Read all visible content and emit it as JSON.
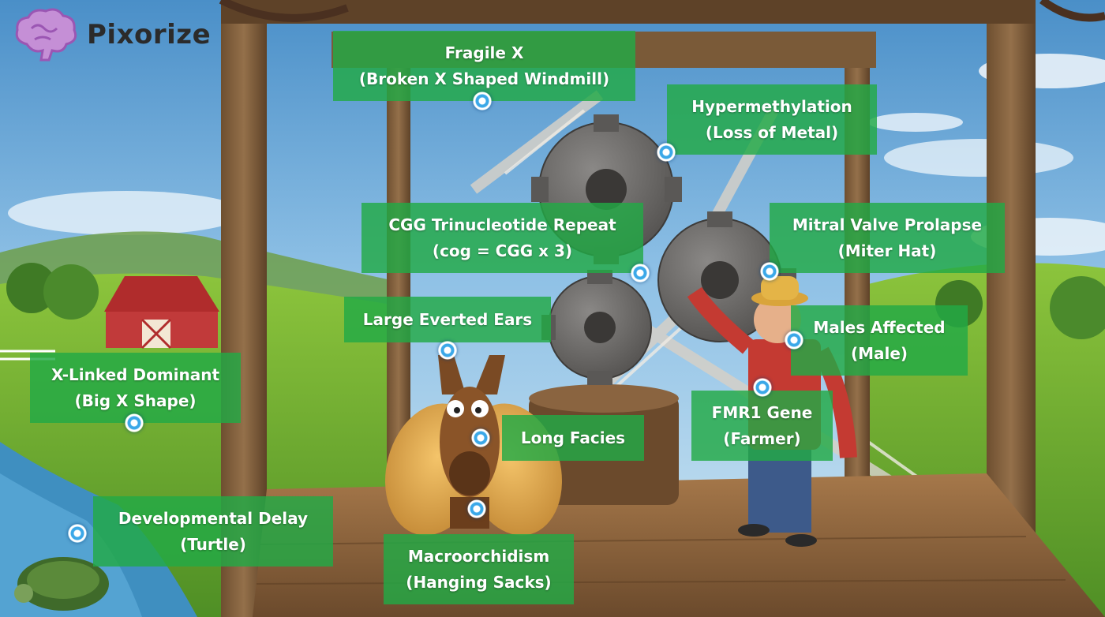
{
  "brand": {
    "name": "Pixorize",
    "icon": "brain-icon",
    "icon_color": "#b36bc7"
  },
  "colors": {
    "label_bg": "#22aa46",
    "dot": "#3ba8e8"
  },
  "labels": [
    {
      "id": "fragile-x",
      "line1": "Fragile X",
      "line2": "(Broken X Shaped Windmill)"
    },
    {
      "id": "hypermethylation",
      "line1": "Hypermethylation",
      "line2": "(Loss of Metal)"
    },
    {
      "id": "cgg-repeat",
      "line1": "CGG Trinucleotide Repeat",
      "line2": "(cog = CGG x 3)"
    },
    {
      "id": "mitral-valve-prolapse",
      "line1": "Mitral Valve Prolapse",
      "line2": "(Miter Hat)"
    },
    {
      "id": "large-everted-ears",
      "line1": "Large Everted Ears",
      "line2": ""
    },
    {
      "id": "males-affected",
      "line1": "Males Affected",
      "line2": "(Male)"
    },
    {
      "id": "x-linked-dominant",
      "line1": "X-Linked Dominant",
      "line2": "(Big X Shape)"
    },
    {
      "id": "long-facies",
      "line1": "Long Facies",
      "line2": ""
    },
    {
      "id": "fmr1-gene",
      "line1": "FMR1 Gene",
      "line2": "(Farmer)"
    },
    {
      "id": "developmental-delay",
      "line1": "Developmental Delay",
      "line2": "(Turtle)"
    },
    {
      "id": "macroorchidism",
      "line1": "Macroorchidism",
      "line2": "(Hanging Sacks)"
    }
  ]
}
